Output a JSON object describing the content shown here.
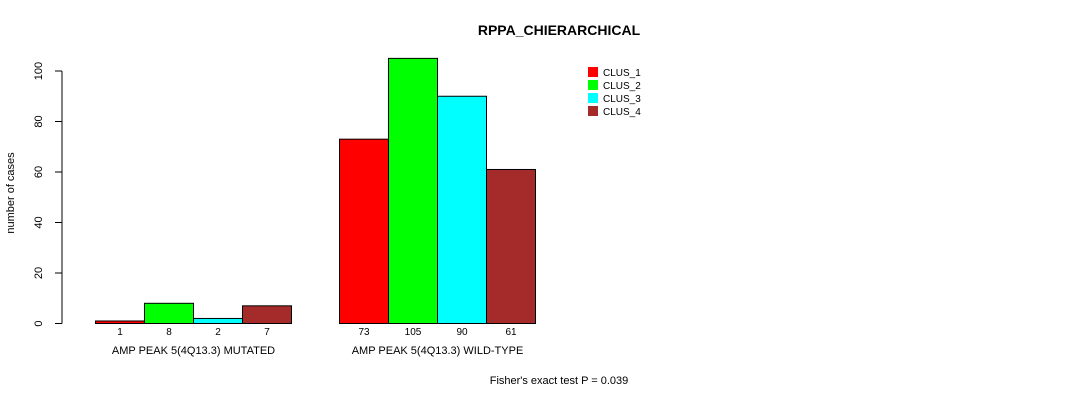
{
  "chart_data": {
    "type": "bar",
    "title": "RPPA_CHIERARCHICAL",
    "xlabel": "",
    "ylabel": "number of cases",
    "ylim": [
      0,
      105
    ],
    "yticks": [
      0,
      20,
      40,
      60,
      80,
      100
    ],
    "groups": [
      "AMP PEAK  5(4Q13.3) MUTATED",
      "AMP PEAK  5(4Q13.3) WILD-TYPE"
    ],
    "series": [
      {
        "name": "CLUS_1",
        "color": "#ff0000",
        "values": [
          1,
          73
        ]
      },
      {
        "name": "CLUS_2",
        "color": "#00ff00",
        "values": [
          8,
          105
        ]
      },
      {
        "name": "CLUS_3",
        "color": "#00ffff",
        "values": [
          2,
          90
        ]
      },
      {
        "name": "CLUS_4",
        "color": "#a52a2a",
        "values": [
          7,
          61
        ]
      }
    ],
    "legend_position": "top-right",
    "footnote": "Fisher's exact test P = 0.039"
  }
}
